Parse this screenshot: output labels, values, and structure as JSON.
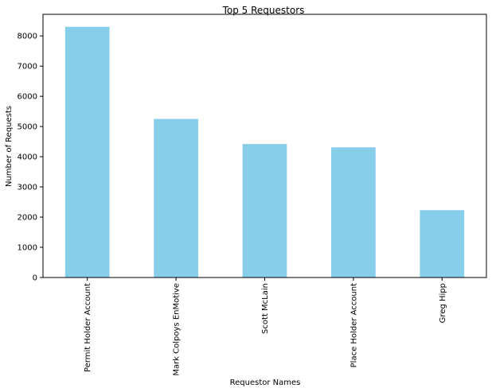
{
  "chart_data": {
    "type": "bar",
    "title": "Top 5 Requestors",
    "xlabel": "Requestor Names",
    "ylabel": "Number of Requests",
    "categories": [
      "Permit Holder Account",
      "Mark Colpoys EnMotive",
      "Scott McLain",
      "Place Holder Account",
      "Greg Hipp"
    ],
    "values": [
      8300,
      5250,
      4420,
      4310,
      2230
    ],
    "ylim": [
      0,
      8715
    ],
    "yticks": [
      0,
      1000,
      2000,
      3000,
      4000,
      5000,
      6000,
      7000,
      8000
    ],
    "ytick_labels": [
      "0",
      "1000",
      "2000",
      "3000",
      "4000",
      "5000",
      "6000",
      "7000",
      "8000"
    ],
    "grid": false,
    "bar_color": "#87ceeb"
  }
}
